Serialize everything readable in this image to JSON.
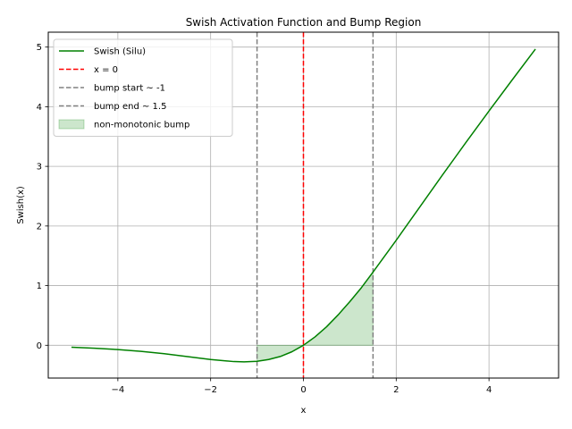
{
  "chart_data": {
    "type": "line",
    "title": "Swish Activation Function and Bump Region",
    "xlabel": "x",
    "ylabel": "Swish(x)",
    "xlim": [
      -5.5,
      5.5
    ],
    "ylim": [
      -0.55,
      5.25
    ],
    "xticks": [
      -4,
      -2,
      0,
      2,
      4
    ],
    "yticks": [
      0,
      1,
      2,
      3,
      4,
      5
    ],
    "xtick_labels": [
      "−4",
      "−2",
      "0",
      "2",
      "4"
    ],
    "ytick_labels": [
      "0",
      "1",
      "2",
      "3",
      "4",
      "5"
    ],
    "grid": true,
    "legend_position": "upper-left",
    "series": [
      {
        "name": "Swish (Silu)",
        "color": "#008000",
        "style": "solid",
        "x": [
          -5.0,
          -4.5,
          -4.0,
          -3.5,
          -3.0,
          -2.5,
          -2.0,
          -1.5,
          -1.278,
          -1.0,
          -0.75,
          -0.5,
          -0.25,
          0.0,
          0.25,
          0.5,
          0.75,
          1.0,
          1.25,
          1.5,
          2.0,
          2.5,
          3.0,
          3.5,
          4.0,
          4.5,
          5.0
        ],
        "y": [
          -0.0335,
          -0.0493,
          -0.0719,
          -0.1027,
          -0.1423,
          -0.1896,
          -0.2384,
          -0.2736,
          -0.2785,
          -0.2689,
          -0.2391,
          -0.1888,
          -0.1097,
          0.0,
          0.1403,
          0.3112,
          0.5109,
          0.7311,
          0.9658,
          1.2264,
          1.7616,
          2.3104,
          2.8577,
          3.3973,
          3.9281,
          4.4502,
          4.9665
        ]
      }
    ],
    "vlines": [
      {
        "name": "x = 0",
        "x": 0,
        "color": "#ff0000",
        "style": "dashed"
      },
      {
        "name": "bump start ~ -1",
        "x": -1,
        "color": "#808080",
        "style": "dashed"
      },
      {
        "name": "bump end ~ 1.5",
        "x": 1.5,
        "color": "#808080",
        "style": "dashed"
      }
    ],
    "fill_region": {
      "name": "non-monotonic bump",
      "x_start": -1,
      "x_end": 1.5,
      "baseline": 0,
      "color": "#008000",
      "opacity": 0.2
    },
    "legend": [
      {
        "label": "Swish (Silu)",
        "kind": "line",
        "color": "#008000",
        "style": "solid"
      },
      {
        "label": "x = 0",
        "kind": "line",
        "color": "#ff0000",
        "style": "dashed"
      },
      {
        "label": "bump start ~ -1",
        "kind": "line",
        "color": "#808080",
        "style": "dashed"
      },
      {
        "label": "bump end ~ 1.5",
        "kind": "line",
        "color": "#808080",
        "style": "dashed"
      },
      {
        "label": "non-monotonic bump",
        "kind": "patch",
        "color": "#008000",
        "opacity": 0.2
      }
    ]
  }
}
